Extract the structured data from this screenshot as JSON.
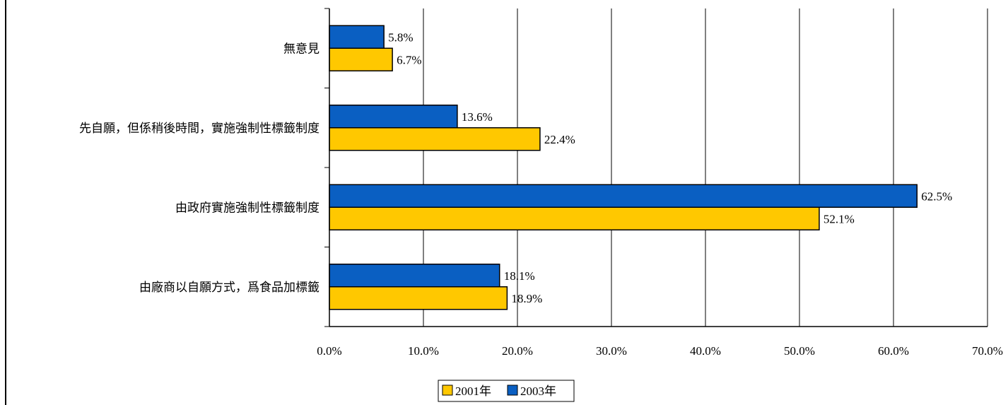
{
  "chart_data": {
    "type": "bar",
    "orientation": "horizontal",
    "categories": [
      "無意見",
      "先自願，但係稍後時間，實施強制性標籤制度",
      "由政府實施強制性標籤制度",
      "由廠商以自願方式，爲食品加標籤"
    ],
    "series": [
      {
        "name": "2003年",
        "color": "#0a5fc2",
        "values": [
          5.8,
          13.6,
          62.5,
          18.1
        ]
      },
      {
        "name": "2001年",
        "color": "#ffc800",
        "values": [
          6.7,
          22.4,
          52.1,
          18.9
        ]
      }
    ],
    "data_labels": [
      [
        "5.8%",
        "13.6%",
        "62.5%",
        "18.1%"
      ],
      [
        "6.7%",
        "22.4%",
        "52.1%",
        "18.9%"
      ]
    ],
    "x_ticks": [
      "0.0%",
      "10.0%",
      "20.0%",
      "30.0%",
      "40.0%",
      "50.0%",
      "60.0%",
      "70.0%"
    ],
    "xlim": [
      0,
      70
    ],
    "grid": true,
    "legend_position": "bottom",
    "legend_order": [
      "2001年",
      "2003年"
    ]
  }
}
